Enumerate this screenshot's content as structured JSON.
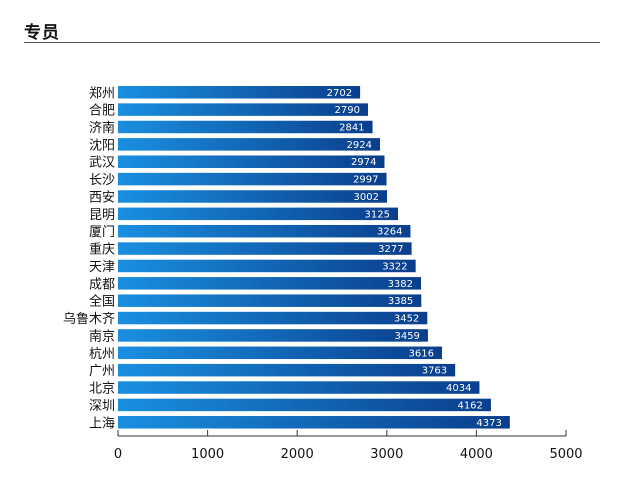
{
  "header": {
    "title": "专员"
  },
  "chart_data": {
    "type": "bar",
    "orientation": "horizontal",
    "title": "",
    "xlabel": "",
    "ylabel": "",
    "categories": [
      "郑州",
      "合肥",
      "济南",
      "沈阳",
      "武汉",
      "长沙",
      "西安",
      "昆明",
      "厦门",
      "重庆",
      "天津",
      "成都",
      "全国",
      "乌鲁木齐",
      "南京",
      "杭州",
      "广州",
      "北京",
      "深圳",
      "上海"
    ],
    "values": [
      2702,
      2790,
      2841,
      2924,
      2974,
      2997,
      3002,
      3125,
      3264,
      3277,
      3322,
      3382,
      3385,
      3452,
      3459,
      3616,
      3763,
      4034,
      4162,
      4373
    ],
    "xlim": [
      0,
      5000
    ],
    "xticks": [
      0,
      1000,
      2000,
      3000,
      4000,
      5000
    ],
    "grid": false,
    "data_labels": true,
    "bar_color_start": "#1a8fe0",
    "bar_color_end": "#0a3e8c"
  }
}
